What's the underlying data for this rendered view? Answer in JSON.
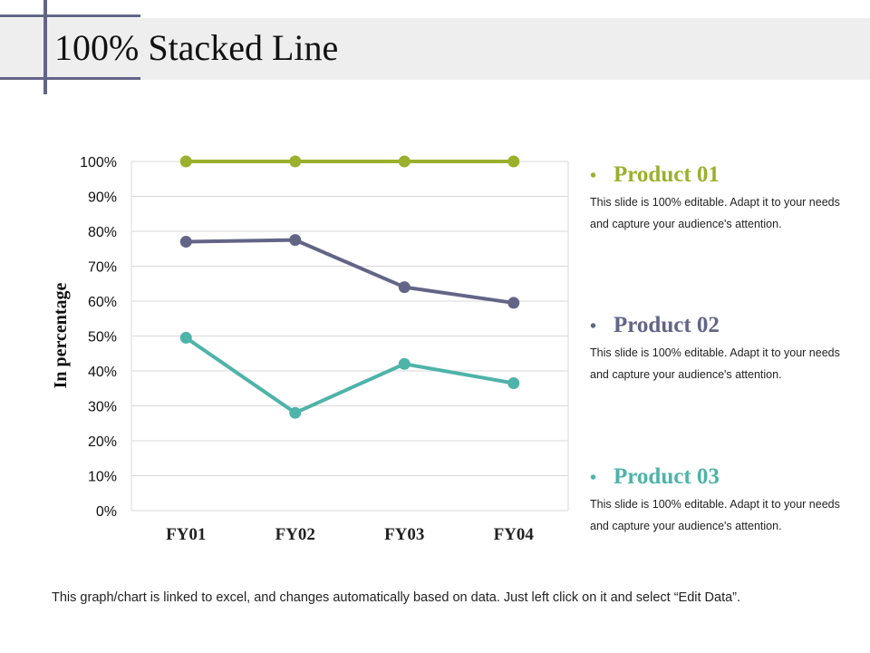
{
  "slide": {
    "title": "100% Stacked Line",
    "footer": "This graph/chart is linked to excel, and changes automatically based on data. Just left click on it and select “Edit Data”."
  },
  "legend": [
    {
      "name": "Product 01",
      "description": "This slide is 100% editable. Adapt it to your needs and capture your audience's attention.",
      "color": "#9bb02d",
      "bullet": "•"
    },
    {
      "name": "Product 02",
      "description": "This slide is 100% editable. Adapt it to your needs and capture your audience's attention.",
      "color": "#636587",
      "bullet": "•"
    },
    {
      "name": "Product 03",
      "description": "This slide is 100% editable. Adapt it to your needs and capture your audience's attention.",
      "color": "#4eb3a9",
      "bullet": "•"
    }
  ],
  "chart_data": {
    "type": "line",
    "title": "",
    "xlabel": "",
    "ylabel": "In percentage",
    "categories": [
      "FY01",
      "FY02",
      "FY03",
      "FY04"
    ],
    "ylim": [
      0,
      100
    ],
    "yticks": [
      "0%",
      "10%",
      "20%",
      "30%",
      "40%",
      "50%",
      "60%",
      "70%",
      "80%",
      "90%",
      "100%"
    ],
    "grid": true,
    "series": [
      {
        "name": "Product 01",
        "color": "#9bb02d",
        "values": [
          100,
          100,
          100,
          100
        ]
      },
      {
        "name": "Product 02",
        "color": "#636587",
        "values": [
          77,
          77.5,
          64,
          59.5
        ]
      },
      {
        "name": "Product 03",
        "color": "#4eb3a9",
        "values": [
          49.5,
          28,
          42,
          36.5
        ]
      }
    ]
  }
}
